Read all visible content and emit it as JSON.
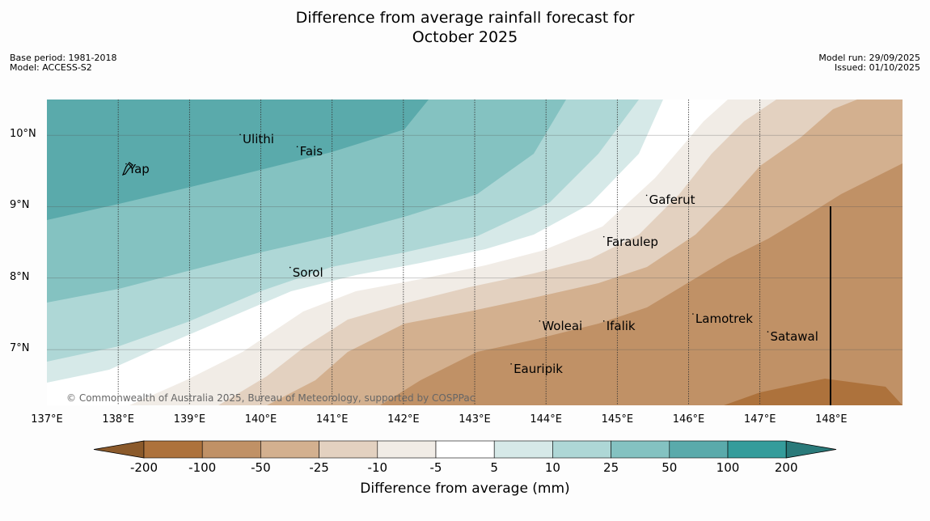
{
  "title_line1": "Difference from average rainfall forecast for",
  "title_line2": "October 2025",
  "meta_left": {
    "base_period": "Base period: 1981-2018",
    "model": "Model: ACCESS-S2"
  },
  "meta_right": {
    "model_run": "Model run: 29/09/2025",
    "issued": "Issued: 01/10/2025"
  },
  "map": {
    "lat_labels": [
      "10°N",
      "9°N",
      "8°N",
      "7°N"
    ],
    "lon_labels": [
      "137°E",
      "138°E",
      "139°E",
      "140°E",
      "141°E",
      "142°E",
      "143°E",
      "144°E",
      "145°E",
      "146°E",
      "147°E",
      "148°E"
    ],
    "extent": {
      "lon_min": 137.0,
      "lon_max": 149.0,
      "lat_min": 6.22,
      "lat_max": 10.5
    },
    "places": [
      {
        "name": "Yap",
        "lon": 138.1,
        "lat": 9.52
      },
      {
        "name": "Ulithi",
        "lon": 139.7,
        "lat": 9.93
      },
      {
        "name": "Fais",
        "lon": 140.5,
        "lat": 9.76
      },
      {
        "name": "Gaferut",
        "lon": 145.4,
        "lat": 9.08
      },
      {
        "name": "Faraulep",
        "lon": 144.8,
        "lat": 8.5
      },
      {
        "name": "Sorol",
        "lon": 140.4,
        "lat": 8.07
      },
      {
        "name": "Woleai",
        "lon": 143.9,
        "lat": 7.32
      },
      {
        "name": "Ifalik",
        "lon": 144.8,
        "lat": 7.32
      },
      {
        "name": "Lamotrek",
        "lon": 146.05,
        "lat": 7.42
      },
      {
        "name": "Satawal",
        "lon": 147.1,
        "lat": 7.17
      },
      {
        "name": "Eauripik",
        "lon": 143.5,
        "lat": 6.72
      }
    ],
    "copyright": "© Commonwealth of Australia 2025, Bureau of Meteorology, supported by COSPPac"
  },
  "colorbar": {
    "levels": [
      "-200",
      "-100",
      "-50",
      "-25",
      "-10",
      "-5",
      "5",
      "10",
      "25",
      "50",
      "100",
      "200"
    ],
    "colors": [
      "#8b5a2b",
      "#ad723c",
      "#c09166",
      "#d3b08f",
      "#e3d1c0",
      "#f1ece6",
      "#ffffff",
      "#d6e9e8",
      "#aed7d6",
      "#84c2c1",
      "#5aaaab",
      "#349c9b",
      "#2a7a7a"
    ],
    "title": "Difference from average (mm)"
  },
  "colors": {
    "grid": "#333333",
    "frame": "#000000"
  }
}
